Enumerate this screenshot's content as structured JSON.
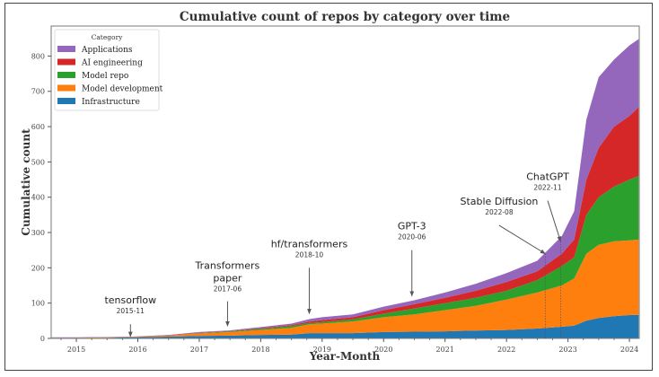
{
  "chart_data": {
    "type": "area",
    "stacked": true,
    "title": "Cumulative count of repos by category over time",
    "xlabel": "Year-Month",
    "ylabel": "Cumulative count",
    "xlim": [
      2014.59,
      2024.16
    ],
    "ylim": [
      0,
      885
    ],
    "xticks": [
      2015,
      2016,
      2017,
      2018,
      2019,
      2020,
      2021,
      2022,
      2023,
      2024
    ],
    "xtick_labels": [
      "2015",
      "2016",
      "2017",
      "2018",
      "2019",
      "2020",
      "2021",
      "2022",
      "2023",
      "2024"
    ],
    "yticks": [
      0,
      100,
      200,
      300,
      400,
      500,
      600,
      700,
      800
    ],
    "ytick_labels": [
      "0",
      "100",
      "200",
      "300",
      "400",
      "500",
      "600",
      "700",
      "800"
    ],
    "legend": {
      "title": "Category",
      "placement": "top-left"
    },
    "x": [
      2014.6,
      2015.0,
      2015.5,
      2015.9,
      2016.5,
      2017.0,
      2017.5,
      2018.0,
      2018.5,
      2018.8,
      2019.0,
      2019.5,
      2020.0,
      2020.5,
      2021.0,
      2021.5,
      2022.0,
      2022.5,
      2022.9,
      2023.1,
      2023.3,
      2023.5,
      2023.75,
      2024.0,
      2024.15
    ],
    "series": [
      {
        "name": "Infrastructure",
        "color": "#1f77b4",
        "values": [
          1,
          1,
          2,
          3,
          5,
          7,
          8,
          10,
          11,
          15,
          15,
          15,
          18,
          19,
          20,
          22,
          24,
          28,
          33,
          36,
          50,
          58,
          63,
          66,
          67
        ]
      },
      {
        "name": "Model development",
        "color": "#ff7f0e",
        "values": [
          1,
          1,
          1,
          1,
          3,
          7,
          10,
          14,
          19,
          25,
          27,
          33,
          42,
          49,
          60,
          70,
          86,
          102,
          117,
          134,
          190,
          207,
          212,
          212,
          213
        ]
      },
      {
        "name": "Model repo",
        "color": "#2ca02c",
        "values": [
          0,
          0,
          0,
          0,
          0,
          1,
          2,
          3,
          5,
          4,
          4,
          6,
          10,
          17,
          20,
          23,
          25,
          35,
          55,
          60,
          110,
          135,
          155,
          172,
          180
        ]
      },
      {
        "name": "AI engineering",
        "color": "#d62728",
        "values": [
          0,
          0,
          0,
          0,
          1,
          1,
          1,
          2,
          3,
          4,
          6,
          6,
          10,
          12,
          15,
          20,
          25,
          25,
          35,
          50,
          100,
          140,
          170,
          180,
          195
        ]
      },
      {
        "name": "Applications",
        "color": "#9467bd",
        "values": [
          1,
          1,
          1,
          1,
          1,
          2,
          2,
          3,
          4,
          7,
          8,
          8,
          10,
          11,
          15,
          20,
          25,
          30,
          50,
          80,
          170,
          200,
          190,
          200,
          193
        ]
      }
    ],
    "annotations": [
      {
        "label": "tensorflow",
        "date": "2015-11",
        "x": 2015.88,
        "arrow_from": 30,
        "arrow_to": 5
      },
      {
        "label": "Transformers paper",
        "lines": [
          "Transformers",
          "paper"
        ],
        "date": "2017-06",
        "x": 2017.46,
        "arrow_from": 95,
        "arrow_to": 35
      },
      {
        "label": "hf/transformers",
        "date": "2018-10",
        "x": 2018.79,
        "arrow_from": 190,
        "arrow_to": 70
      },
      {
        "label": "GPT-3",
        "date": "2020-06",
        "x": 2020.46,
        "arrow_from": 240,
        "arrow_to": 120
      },
      {
        "label": "Stable Diffusion",
        "date": "2022-08",
        "x": 2022.63,
        "arrow_from": 310,
        "arrow_to": 240,
        "text_x": 2021.88,
        "vline": true
      },
      {
        "label": "ChatGPT",
        "date": "2022-11",
        "x": 2022.88,
        "arrow_from": 380,
        "arrow_to": 275,
        "text_x": 2022.67,
        "vline": true
      }
    ]
  }
}
